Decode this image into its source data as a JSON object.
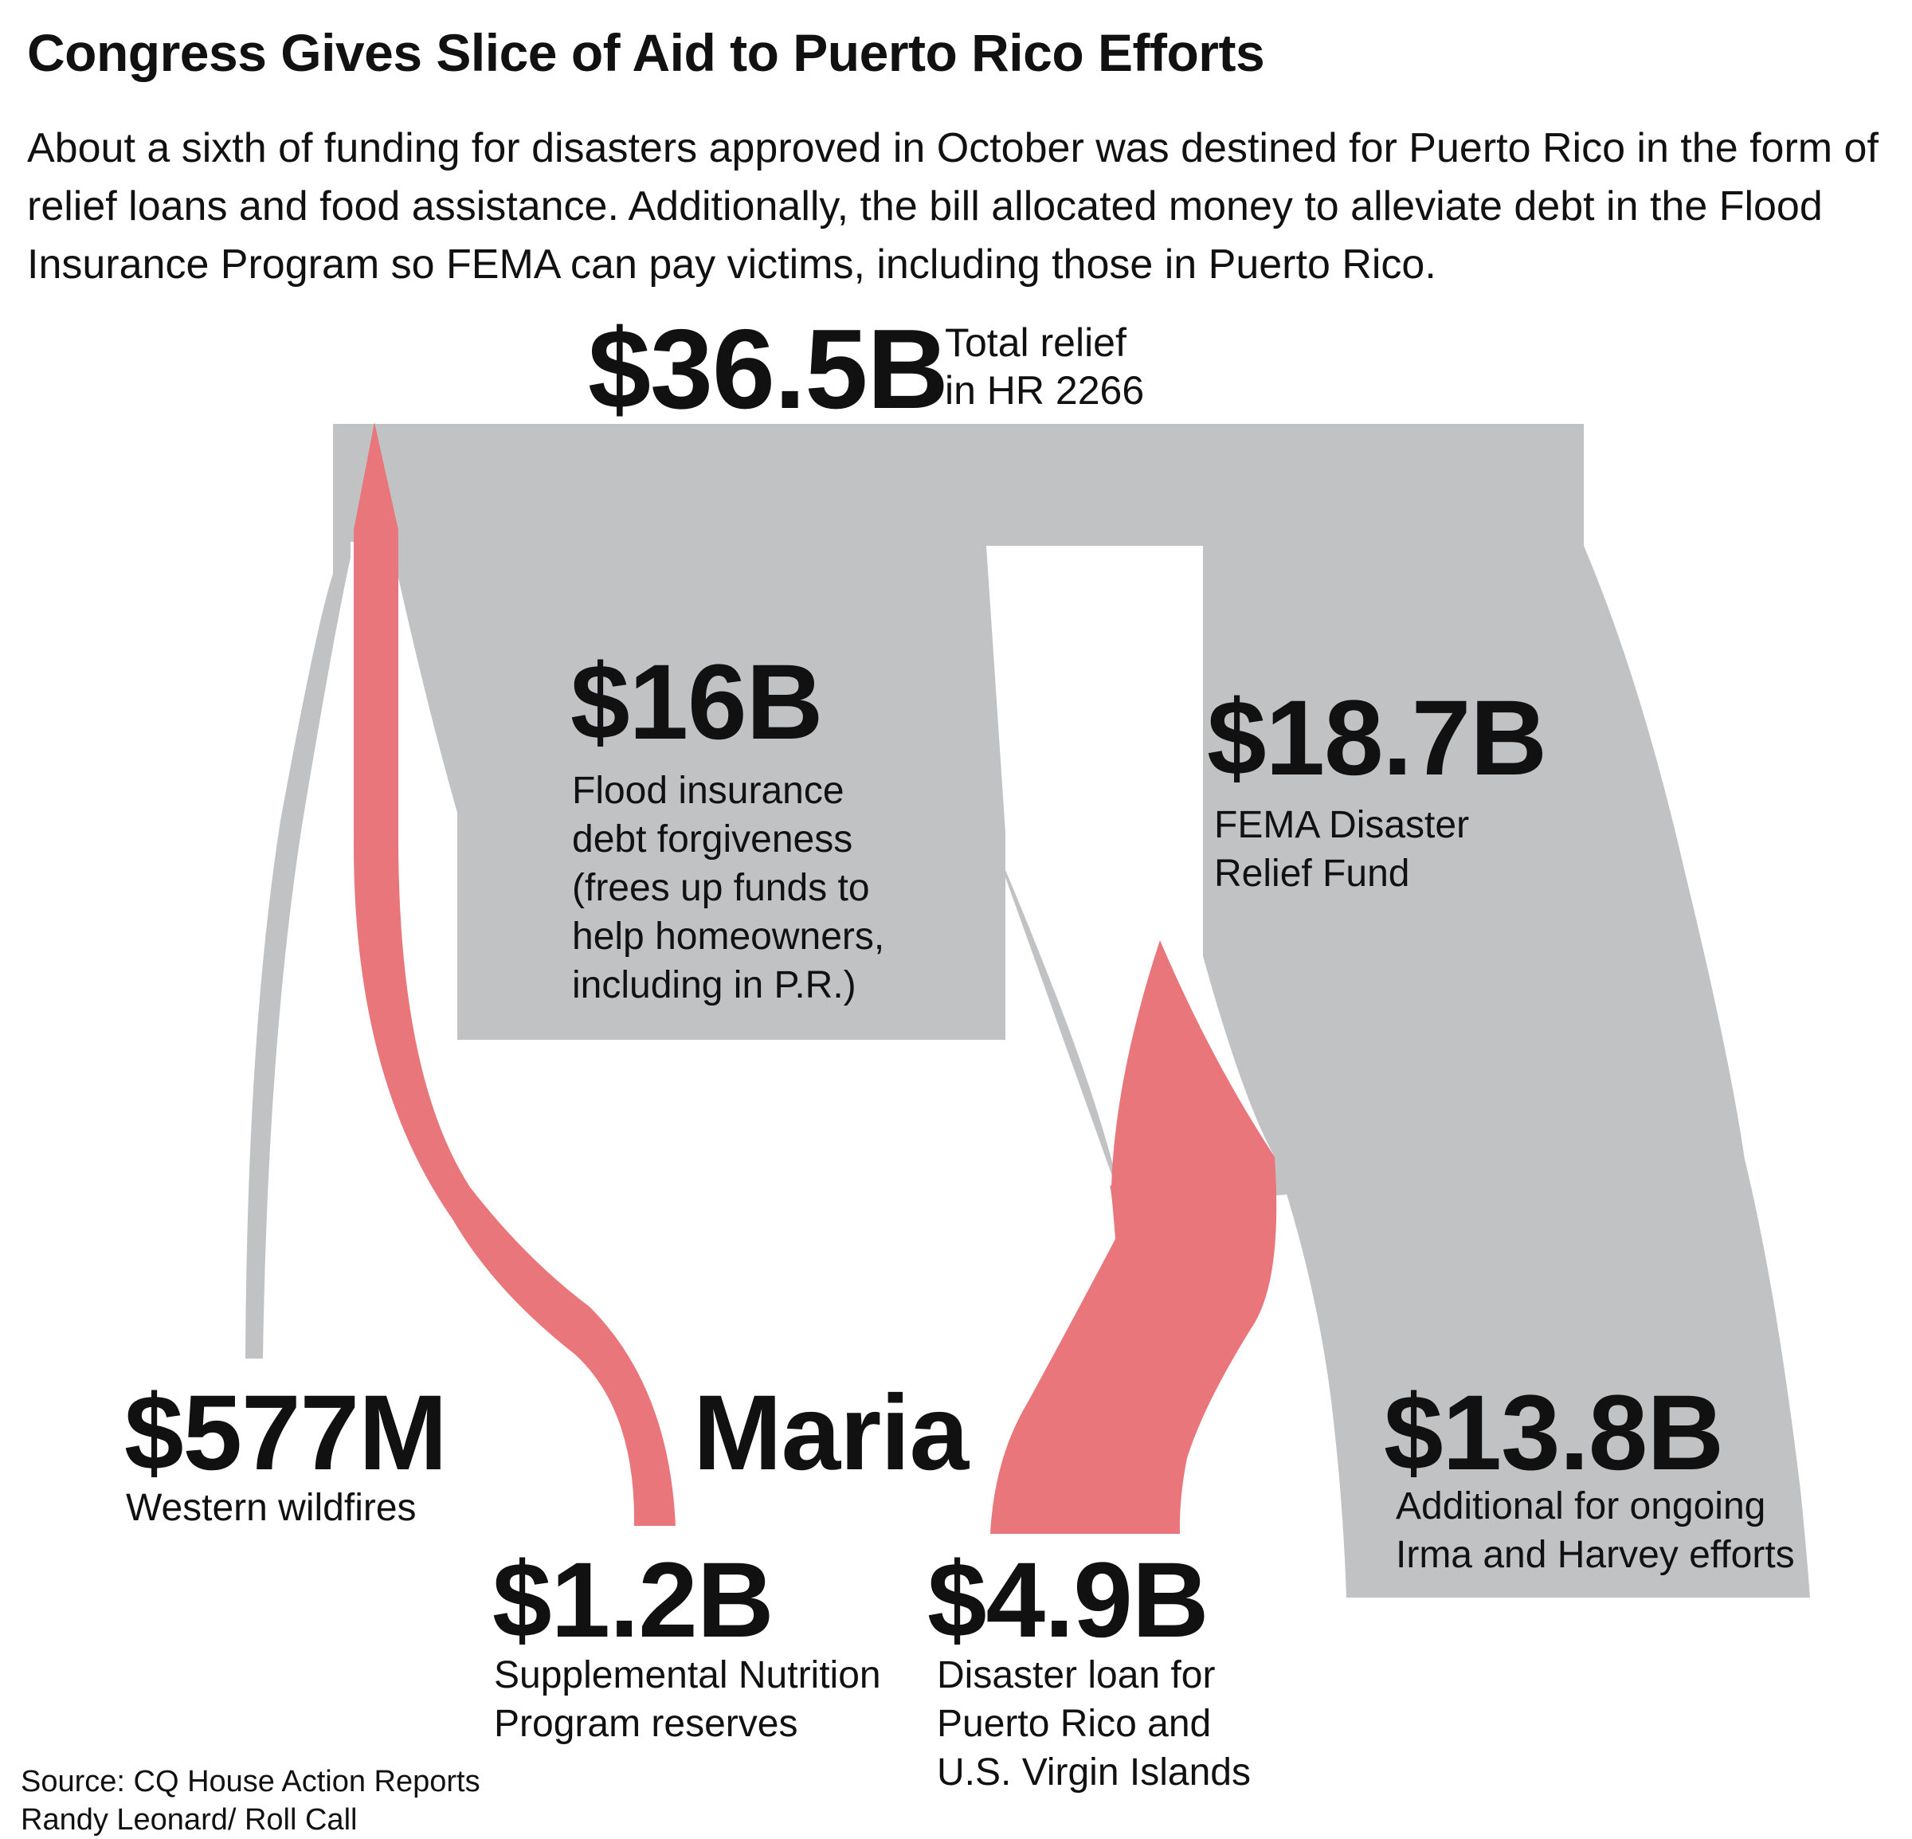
{
  "header": {
    "title": "Congress Gives Slice of Aid to Puerto Rico Efforts",
    "subtitle": "About a sixth of funding for disasters approved in October was destined for Puerto Rico in the form of relief loans and food assistance. Additionally, the bill allocated money to alleviate debt in the Flood Insurance Program so FEMA can pay victims, including those in Puerto Rico."
  },
  "colors": {
    "gray_flow": "#c1c2c4",
    "red_flow": "#e8767a",
    "text": "#111111"
  },
  "diagram": {
    "total": {
      "amount": "$36.5B",
      "label": "Total relief\nin HR 2266"
    },
    "flood": {
      "amount": "$16B",
      "label": "Flood insurance\ndebt forgiveness\n(frees up funds to\nhelp homeowners,\nincluding in P.R.)"
    },
    "fema": {
      "amount": "$18.7B",
      "label": "FEMA Disaster\nRelief Fund"
    },
    "wildfires": {
      "amount": "$577M",
      "label": "Western wildfires"
    },
    "maria": {
      "label": "Maria"
    },
    "irma_harvey": {
      "amount": "$13.8B",
      "label": "Additional for ongoing\nIrma and Harvey efforts"
    },
    "snap": {
      "amount": "$1.2B",
      "label": "Supplemental Nutrition\nProgram reserves"
    },
    "loan": {
      "amount": "$4.9B",
      "label": "Disaster loan for\nPuerto Rico and\nU.S. Virgin Islands"
    }
  },
  "footer": {
    "source": "Source: CQ House Action Reports\nRandy Leonard/ Roll Call"
  }
}
